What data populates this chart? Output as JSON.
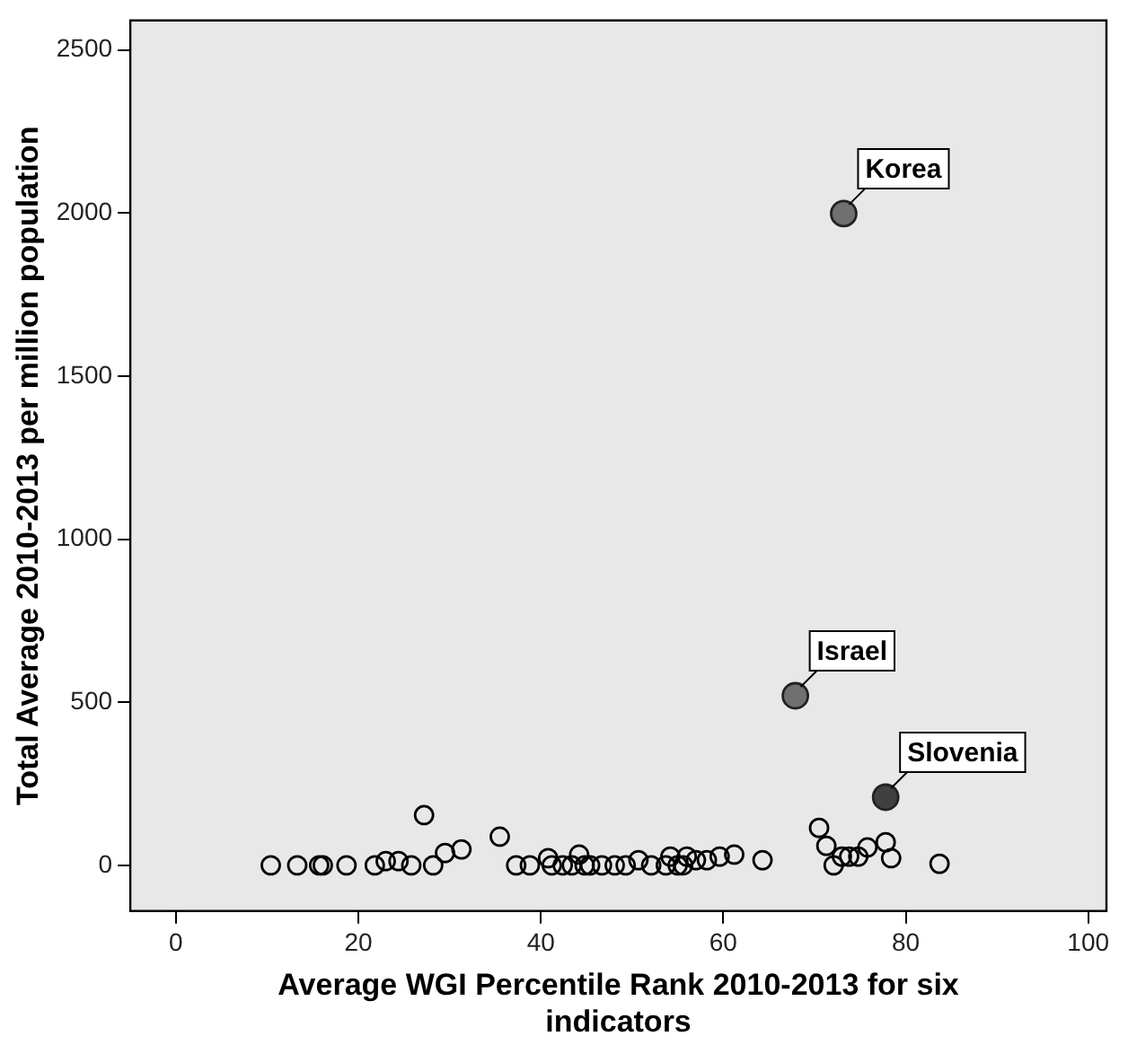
{
  "chart_data": {
    "type": "scatter",
    "xlabel": "Average WGI Percentile Rank 2010-2013 for six indicators",
    "ylabel": "Total Average 2010-2013 per million population",
    "xlim": [
      -5,
      102
    ],
    "ylim": [
      -140,
      2590
    ],
    "xticks": [
      0,
      20,
      40,
      60,
      80,
      100
    ],
    "yticks": [
      0,
      500,
      1000,
      1500,
      2000,
      2500
    ],
    "grid": false,
    "legend": false,
    "marker": "circle",
    "series": [
      {
        "color": "#000000",
        "x": [
          10.4,
          13.3,
          15.7,
          16.1,
          18.7,
          21.8,
          23.0,
          24.4,
          25.8,
          27.2,
          28.2,
          29.5,
          31.3,
          35.5,
          37.3,
          38.8,
          40.8,
          41.2,
          42.4,
          43.4,
          44.2,
          44.8,
          45.4,
          46.7,
          48.1,
          49.3,
          50.7,
          52.1,
          53.7,
          54.2,
          55.0,
          55.6,
          56.0,
          57.0,
          58.2,
          59.6,
          61.2,
          64.3,
          70.5,
          71.3,
          72.1,
          73.0,
          73.8,
          74.8,
          75.8,
          77.8,
          78.4,
          83.7
        ],
        "values": [
          0,
          0,
          0,
          0,
          0,
          0,
          13,
          13,
          0,
          154,
          0,
          38,
          49,
          88,
          0,
          0,
          22,
          0,
          0,
          0,
          33,
          0,
          0,
          0,
          0,
          0,
          16,
          0,
          0,
          27,
          0,
          0,
          27,
          16,
          16,
          27,
          33,
          16,
          115,
          60,
          0,
          27,
          27,
          27,
          55,
          71,
          22,
          5
        ]
      },
      {
        "color": "#707070",
        "x": [
          73.2,
          67.9
        ],
        "values": [
          1998,
          520
        ]
      },
      {
        "color": "#404040",
        "x": [
          77.8
        ],
        "values": [
          209
        ]
      }
    ],
    "annotations": [
      {
        "text": "Korea",
        "x": 73.2,
        "y": 1998
      },
      {
        "text": "Israel",
        "x": 67.9,
        "y": 520
      },
      {
        "text": "Slovenia",
        "x": 77.8,
        "y": 209
      }
    ]
  }
}
